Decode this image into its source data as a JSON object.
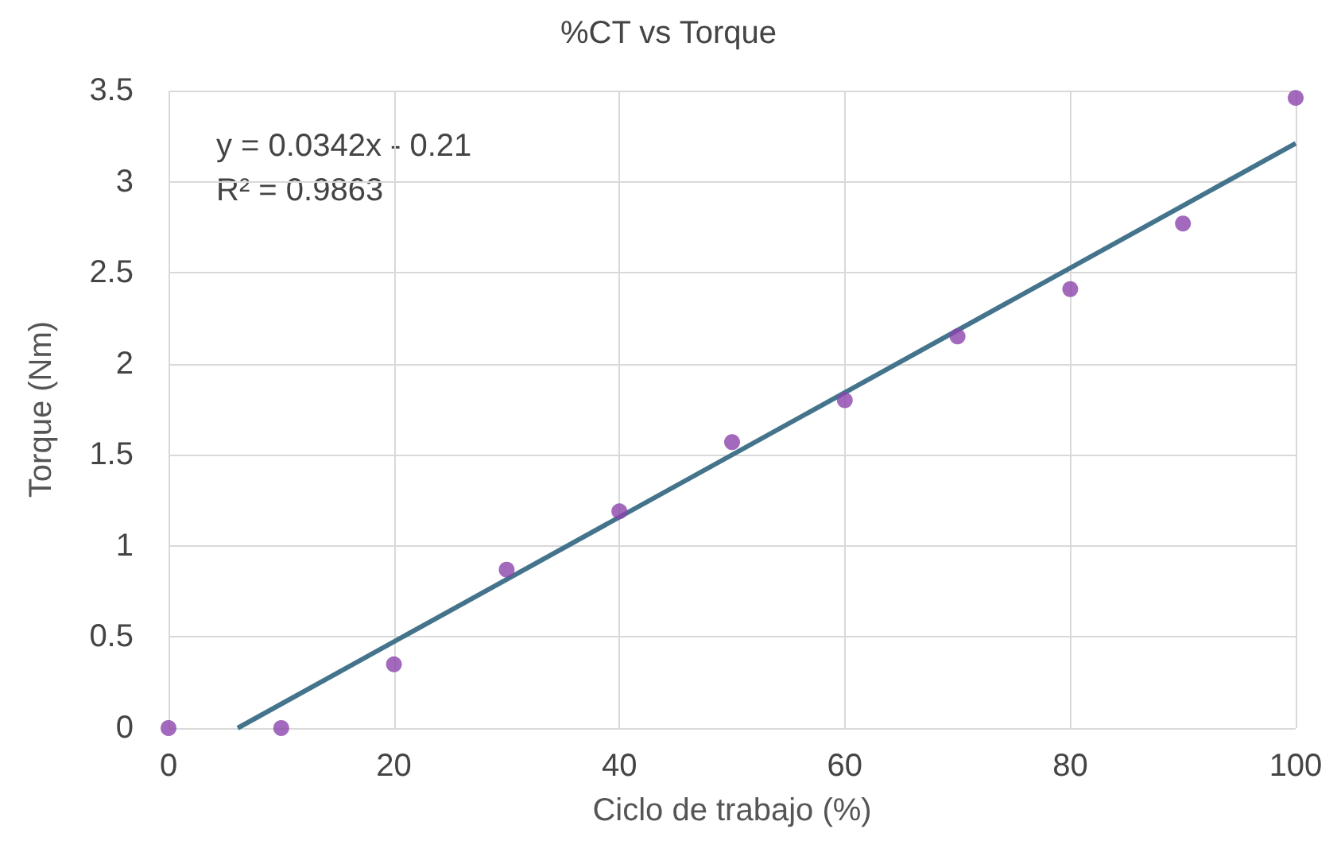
{
  "chart_data": {
    "type": "scatter",
    "title": "%CT vs Torque",
    "xlabel": "Ciclo de trabajo (%)",
    "ylabel": "Torque (Nm)",
    "annotations": [
      "y = 0.0342x - 0.21",
      "R² = 0.9863"
    ],
    "series": [
      {
        "color": "#8b44ac",
        "marker": "circle",
        "x": [
          0,
          10,
          20,
          30,
          40,
          50,
          60,
          70,
          80,
          90,
          100
        ],
        "values": [
          0,
          0,
          0.35,
          0.87,
          1.19,
          1.57,
          1.8,
          2.15,
          2.41,
          2.77,
          3.46
        ]
      },
      {
        "type": "line",
        "color": "#44748c",
        "marker": "none",
        "line_style": "solid",
        "x": [
          6.14,
          100
        ],
        "values": [
          0,
          3.21
        ]
      }
    ],
    "xlim": [
      0,
      100
    ],
    "xticks": [
      0,
      20,
      40,
      60,
      80,
      100
    ],
    "ylim": [
      0,
      3.5
    ],
    "yticks": [
      0,
      0.5,
      1,
      1.5,
      2,
      2.5,
      3,
      3.5
    ],
    "grid": true
  }
}
